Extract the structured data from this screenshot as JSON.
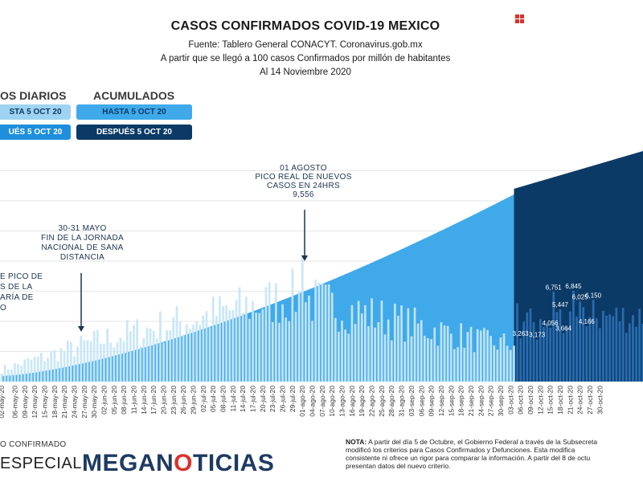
{
  "header": {
    "title": "CASOS CONFIRMADOS COVID-19 MEXICO",
    "source": "Fuente: Tablero General CONACYT. Coronavirus.gob.mx",
    "criterion": "A partir que se llegó a 100 casos Confirmados por millón de habitantes",
    "date": "Al 14 Noviembre 2020"
  },
  "legend": {
    "daily_heading": "OS DIARIOS",
    "cumulative_heading": "ACUMULADOS",
    "daily_before": "STA 5 OCT 20",
    "daily_after": "UÉS 5 OCT 20",
    "cumulative_before": "HASTA 5 OCT 20",
    "cumulative_after": "DESPUÉS 5 OCT 20"
  },
  "annotations": {
    "peak_lines": [
      "01 AGOSTO",
      "PICO REAL DE NUEVOS",
      "CASOS EN 24HRS",
      "9,556"
    ],
    "may_lines": [
      "30-31 MAYO",
      "FIN DE LA JORNADA",
      "NACIONAL DE SANA",
      "DISTANCIA"
    ],
    "left_lines": [
      "E PICO DE",
      "S DE LA",
      "ARÍA DE",
      "O"
    ]
  },
  "footer": {
    "left_top": "O CONFIRMADO",
    "especial": "ESPECIAL",
    "brand_a": "MEGAN",
    "brand_b": "O",
    "brand_c": "TICIAS",
    "note_label": "NOTA:",
    "note_lines": [
      " A partir del día 5 de Octubre, el Gobierno Federal a través de la Subsecreta",
      "modificó los criterios para Casos Confirmados y Defunciones. Esta modifica",
      "consistente ni ofrece un rigor para comparar la información. A partir del 8 de octu",
      "presentan datos del nuevo criterio."
    ]
  },
  "colors": {
    "daily_before": "#c6e6f7",
    "daily_after": "#2b6fb3",
    "cumulative_before": "#3fa9ea",
    "cumulative_after": "#0c3a66",
    "pill_daily_before": "#9fd3f2",
    "pill_daily_after": "#1f8fdc",
    "annotation": "#1c3350",
    "brand": "#1d3a63",
    "brand_accent": "#d9322c"
  },
  "chart_data": {
    "type": "bar",
    "x_start": "2020-05-02",
    "x_end": "2020-11-14",
    "regime_change": "2020-10-05",
    "daily_ymax": 10000,
    "daily_peak": {
      "date": "2020-08-01",
      "value": 9556
    },
    "daily_labels": [
      {
        "date": "2020-10-06",
        "value": 3263
      },
      {
        "date": "2020-10-11",
        "value": 3173
      },
      {
        "date": "2020-10-15",
        "value": 4056
      },
      {
        "date": "2020-10-16",
        "value": 6751
      },
      {
        "date": "2020-10-18",
        "value": 5447
      },
      {
        "date": "2020-10-19",
        "value": 3664
      },
      {
        "date": "2020-10-22",
        "value": 6845
      },
      {
        "date": "2020-10-24",
        "value": 6025
      },
      {
        "date": "2020-10-26",
        "value": 4166
      },
      {
        "date": "2020-10-28",
        "value": 6150
      }
    ],
    "x_tick_labels": [
      "02-may-20",
      "06-may-20",
      "09-may-20",
      "12-may-20",
      "15-may-20",
      "18-may-20",
      "21-may-20",
      "24-may-20",
      "27-may-20",
      "30-may-20",
      "02-jun-20",
      "05-jun-20",
      "08-jun-20",
      "11-jun-20",
      "14-jun-20",
      "17-jun-20",
      "20-jun-20",
      "23-jun-20",
      "26-jun-20",
      "29-jun-20",
      "02-jul-20",
      "05-jul-20",
      "08-jul-20",
      "11-jul-20",
      "14-jul-20",
      "17-jul-20",
      "20-jul-20",
      "23-jul-20",
      "26-jul-20",
      "29-jul-20",
      "01-ago-20",
      "04-ago-20",
      "07-ago-20",
      "10-ago-20",
      "13-ago-20",
      "16-ago-20",
      "19-ago-20",
      "22-ago-20",
      "25-ago-20",
      "28-ago-20",
      "31-ago-20",
      "03-sep-20",
      "06-sep-20",
      "09-sep-20",
      "12-sep-20",
      "15-sep-20",
      "18-sep-20",
      "21-sep-20",
      "24-sep-20",
      "27-sep-20",
      "30-sep-20",
      "03-oct-20",
      "06-oct-20",
      "09-oct-20",
      "12-oct-20",
      "15-oct-20",
      "18-oct-20",
      "21-oct-20",
      "24-oct-20",
      "27-oct-20",
      "30-oct-20"
    ]
  }
}
